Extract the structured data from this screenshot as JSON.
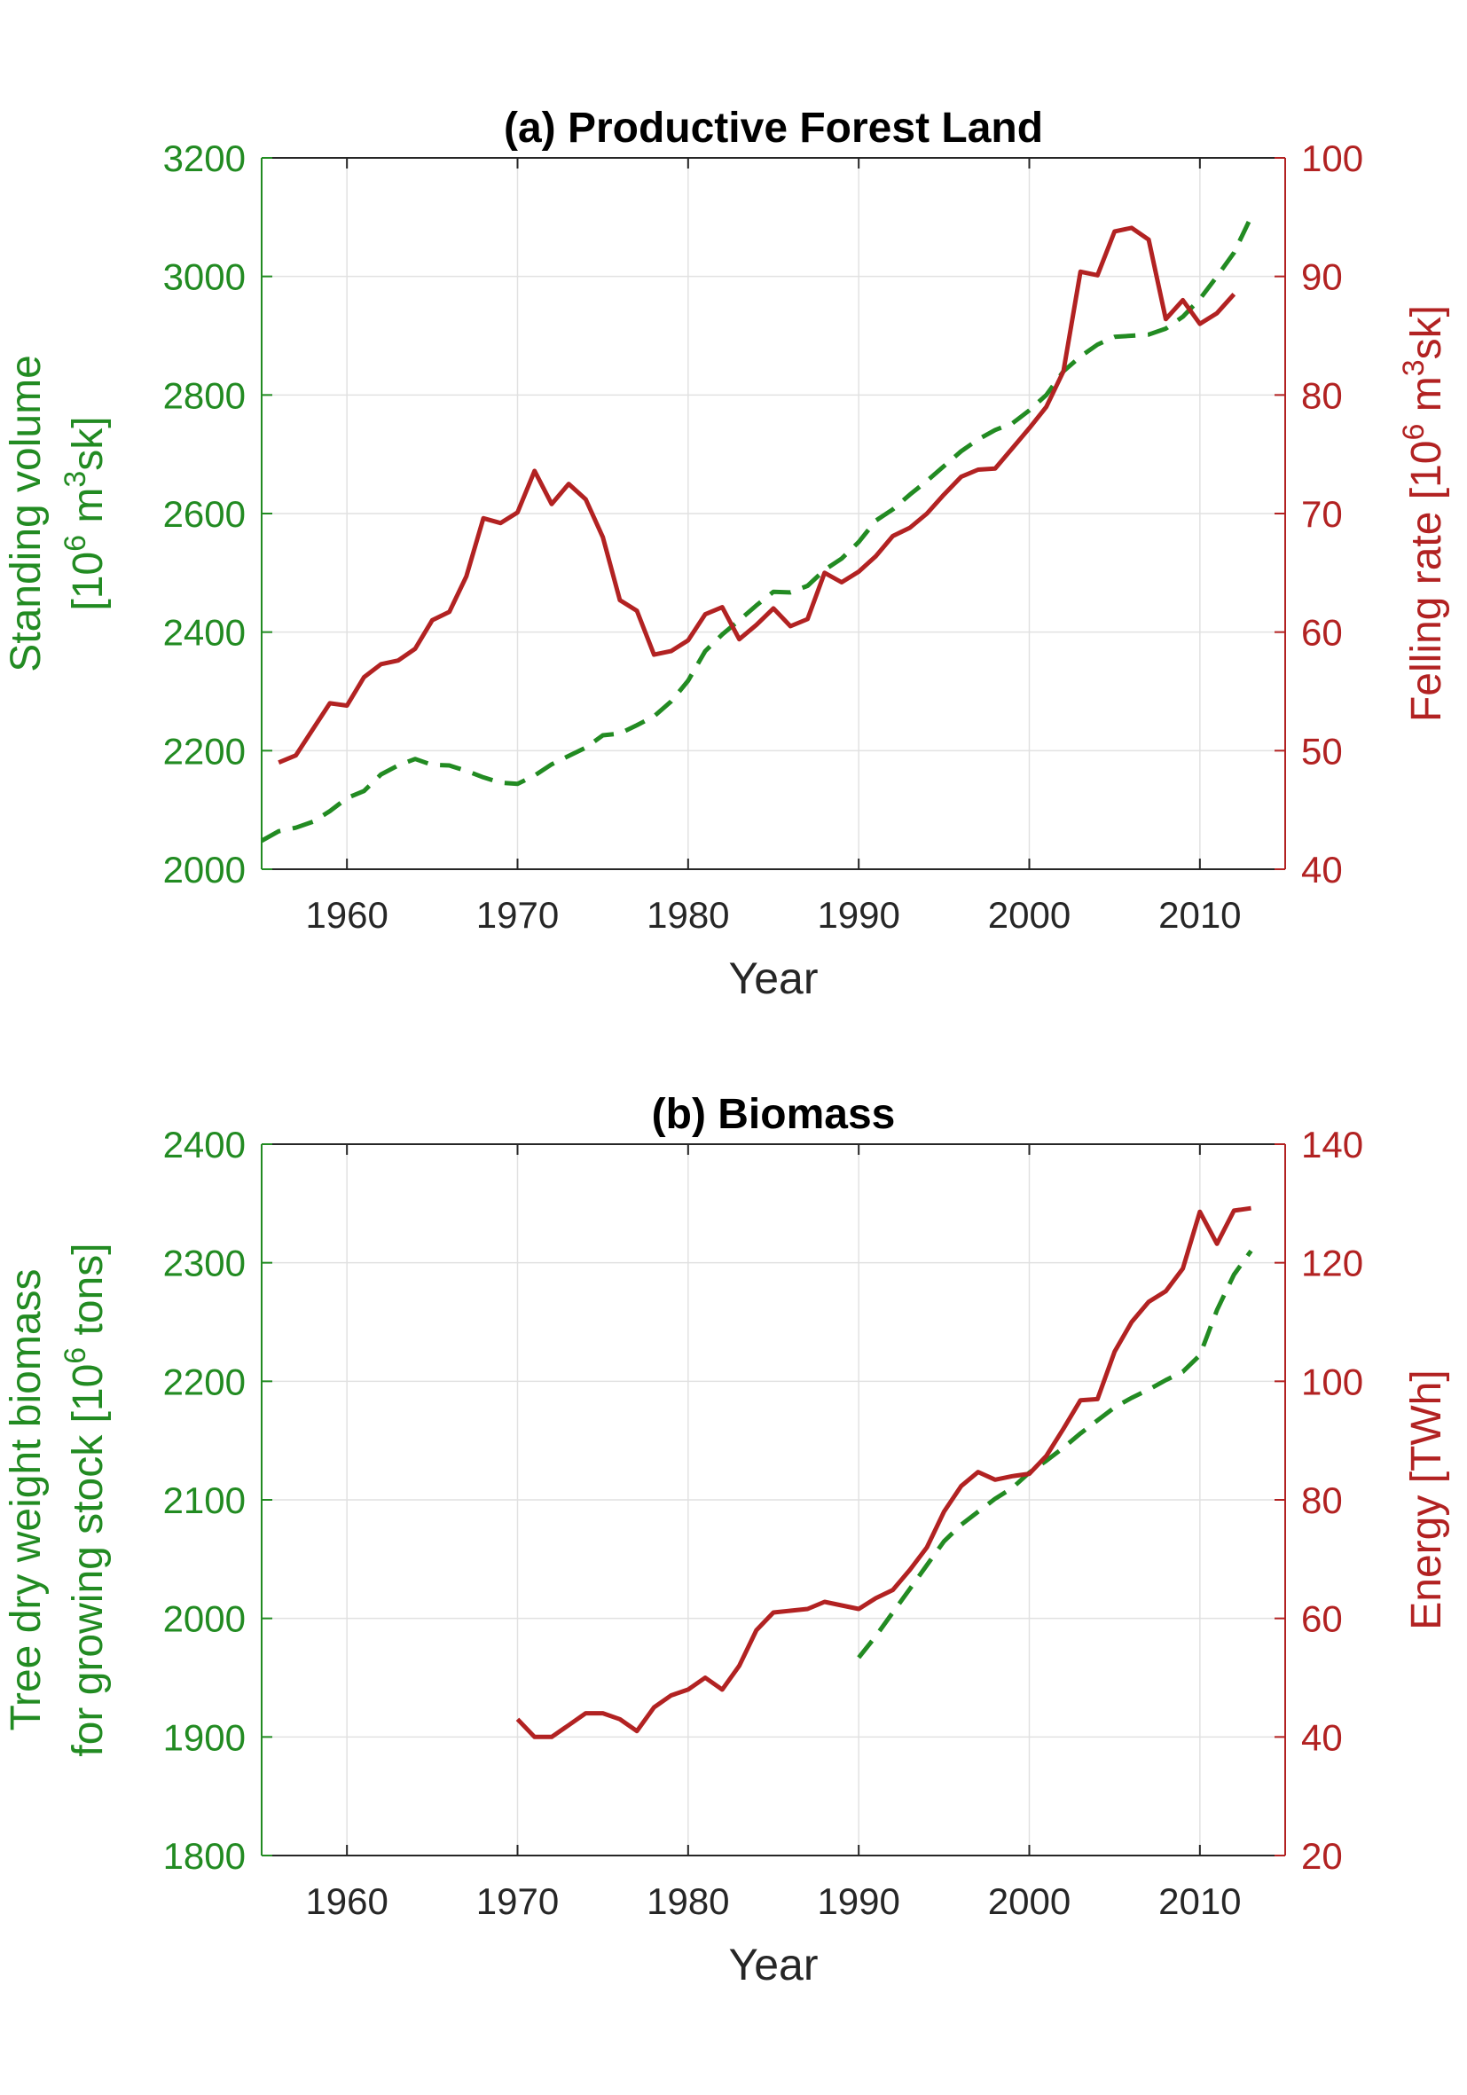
{
  "chart_data": [
    {
      "type": "line",
      "title": "(a) Productive Forest Land",
      "xlabel": "Year",
      "xlim": [
        1955,
        2015
      ],
      "xticks": [
        1960,
        1970,
        1980,
        1990,
        2000,
        2010
      ],
      "grid": true,
      "left_axis": {
        "label_lines": [
          "Standing volume",
          "[10^6 m^3sk]"
        ],
        "ylim": [
          2000,
          3200
        ],
        "ticks": [
          2000,
          2200,
          2400,
          2600,
          2800,
          3000,
          3200
        ],
        "color": "#228b22"
      },
      "right_axis": {
        "label": "Felling rate [10^6 m^3sk]",
        "ylim": [
          40,
          100
        ],
        "ticks": [
          40,
          50,
          60,
          70,
          80,
          90,
          100
        ],
        "color": "#b22222"
      },
      "series": [
        {
          "axis": "left",
          "style": "dashed",
          "color": "#228b22",
          "x": [
            1955,
            1956,
            1957,
            1958,
            1959,
            1960,
            1961,
            1962,
            1963,
            1964,
            1965,
            1966,
            1967,
            1968,
            1969,
            1970,
            1971,
            1972,
            1973,
            1974,
            1975,
            1976,
            1977,
            1978,
            1979,
            1980,
            1981,
            1982,
            1983,
            1984,
            1985,
            1986,
            1987,
            1988,
            1989,
            1990,
            1991,
            1992,
            1993,
            1994,
            1995,
            1996,
            1997,
            1998,
            1999,
            2000,
            2001,
            2002,
            2003,
            2004,
            2005,
            2006,
            2007,
            2008,
            2009,
            2010,
            2011,
            2012,
            2013
          ],
          "values": [
            2048,
            2064,
            2070,
            2080,
            2098,
            2120,
            2132,
            2160,
            2175,
            2186,
            2176,
            2175,
            2166,
            2155,
            2146,
            2144,
            2158,
            2177,
            2191,
            2205,
            2226,
            2229,
            2243,
            2258,
            2283,
            2318,
            2368,
            2396,
            2420,
            2445,
            2468,
            2467,
            2478,
            2505,
            2524,
            2552,
            2588,
            2607,
            2632,
            2655,
            2680,
            2705,
            2725,
            2741,
            2752,
            2774,
            2800,
            2840,
            2865,
            2885,
            2898,
            2900,
            2902,
            2912,
            2932,
            2962,
            3000,
            3040,
            3100
          ]
        },
        {
          "axis": "right",
          "style": "solid",
          "color": "#b22222",
          "x": [
            1956,
            1957,
            1958,
            1959,
            1960,
            1961,
            1962,
            1963,
            1964,
            1965,
            1966,
            1967,
            1968,
            1969,
            1970,
            1971,
            1972,
            1973,
            1974,
            1975,
            1976,
            1977,
            1978,
            1979,
            1980,
            1981,
            1982,
            1983,
            1984,
            1985,
            1986,
            1987,
            1988,
            1989,
            1990,
            1991,
            1992,
            1993,
            1994,
            1995,
            1996,
            1997,
            1998,
            1999,
            2000,
            2001,
            2002,
            2003,
            2004,
            2005,
            2006,
            2007,
            2008,
            2009,
            2010,
            2011,
            2012
          ],
          "values": [
            49.0,
            49.6,
            51.8,
            54.0,
            53.8,
            56.2,
            57.3,
            57.6,
            58.6,
            61.0,
            61.7,
            64.7,
            69.6,
            69.2,
            70.1,
            73.6,
            70.8,
            72.5,
            71.2,
            68.0,
            62.7,
            61.8,
            58.1,
            58.4,
            59.3,
            61.5,
            62.1,
            59.4,
            60.6,
            62.0,
            60.5,
            61.1,
            65.0,
            64.2,
            65.1,
            66.4,
            68.1,
            68.8,
            70.0,
            71.6,
            73.1,
            73.7,
            73.8,
            75.5,
            77.2,
            79.0,
            82.0,
            90.4,
            90.1,
            93.8,
            94.1,
            93.1,
            86.4,
            88.0,
            86.0,
            86.9,
            88.5
          ]
        }
      ]
    },
    {
      "type": "line",
      "title": "(b) Biomass",
      "xlabel": "Year",
      "xlim": [
        1955,
        2015
      ],
      "xticks": [
        1960,
        1970,
        1980,
        1990,
        2000,
        2010
      ],
      "grid": true,
      "left_axis": {
        "label_lines": [
          "Tree dry weight biomass",
          "for growing stock [10^6 tons]"
        ],
        "ylim": [
          1800,
          2400
        ],
        "ticks": [
          1800,
          1900,
          2000,
          2100,
          2200,
          2300,
          2400
        ],
        "color": "#228b22"
      },
      "right_axis": {
        "label": "Energy [TWh]",
        "ylim": [
          20,
          140
        ],
        "ticks": [
          20,
          40,
          60,
          80,
          100,
          120,
          140
        ],
        "color": "#b22222"
      },
      "series": [
        {
          "axis": "left",
          "style": "dashed",
          "color": "#228b22",
          "x": [
            1990,
            1991,
            1992,
            1993,
            1994,
            1995,
            1996,
            1997,
            1998,
            1999,
            2000,
            2001,
            2002,
            2003,
            2004,
            2005,
            2006,
            2007,
            2008,
            2009,
            2010,
            2011,
            2012,
            2013
          ],
          "values": [
            1967,
            1985,
            2005,
            2025,
            2045,
            2065,
            2079,
            2090,
            2101,
            2110,
            2123,
            2133,
            2144,
            2156,
            2167,
            2178,
            2186,
            2193,
            2201,
            2208,
            2222,
            2260,
            2290,
            2310
          ]
        },
        {
          "axis": "right",
          "style": "solid",
          "color": "#b22222",
          "x": [
            1970,
            1971,
            1972,
            1973,
            1974,
            1975,
            1976,
            1977,
            1978,
            1979,
            1980,
            1981,
            1982,
            1983,
            1984,
            1985,
            1986,
            1987,
            1988,
            1989,
            1990,
            1991,
            1992,
            1993,
            1994,
            1995,
            1996,
            1997,
            1998,
            1999,
            2000,
            2001,
            2002,
            2003,
            2004,
            2005,
            2006,
            2007,
            2008,
            2009,
            2010,
            2011,
            2012,
            2013
          ],
          "values": [
            43,
            40,
            40,
            42,
            44,
            44,
            43,
            41,
            45,
            47,
            48,
            50,
            48,
            52,
            58,
            61,
            61.3,
            61.6,
            62.8,
            62.2,
            61.6,
            63.4,
            64.8,
            68.2,
            72,
            78,
            82.3,
            84.7,
            83.4,
            84,
            84.4,
            87.4,
            92,
            96.8,
            97,
            105,
            110,
            113.4,
            115.2,
            119,
            128.6,
            123.2,
            128.8,
            129.2
          ]
        }
      ]
    }
  ]
}
